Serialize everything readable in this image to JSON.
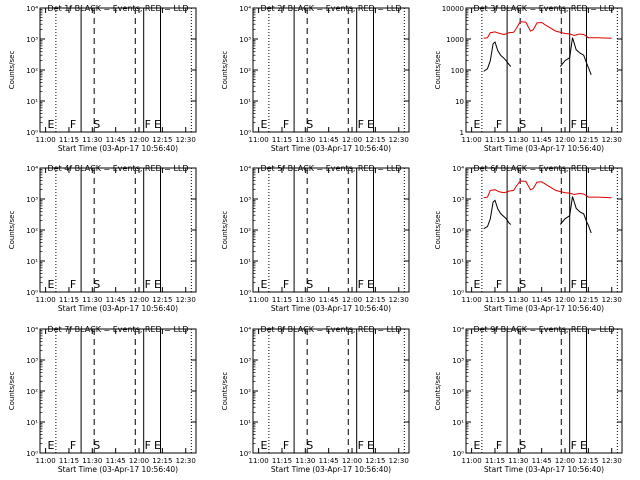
{
  "chart_data": [
    {
      "type": "line",
      "title": "Det 1f BLACK = Events, RED = LLD",
      "ylabel": "Counts/sec",
      "xlabel": "Start Time (03-Apr-17 10:56:40)",
      "x_ticks": [
        "11:00",
        "11:15",
        "11:30",
        "11:45",
        "12:00",
        "12:15",
        "12:30"
      ],
      "y_scale": "log",
      "y_ticks": [
        "10⁰",
        "10¹",
        "10²",
        "10³",
        "10⁴"
      ],
      "ylim": [
        1,
        10000
      ],
      "markers": [
        "E",
        "F",
        "S",
        "F",
        "E"
      ],
      "series": []
    },
    {
      "type": "line",
      "title": "Det 2f BLACK = Events, RED = LLD",
      "ylabel": "Counts/sec",
      "xlabel": "Start Time (03-Apr-17 10:56:40)",
      "x_ticks": [
        "11:00",
        "11:15",
        "11:30",
        "11:45",
        "12:00",
        "12:15",
        "12:30"
      ],
      "y_scale": "log",
      "y_ticks": [
        "10⁰",
        "10¹",
        "10²",
        "10³",
        "10⁴"
      ],
      "ylim": [
        1,
        10000
      ],
      "markers": [
        "E",
        "F",
        "S",
        "F",
        "E"
      ],
      "series": []
    },
    {
      "type": "line",
      "title": "Det 3f BLACK = Events, RED = LLD",
      "ylabel": "Counts/sec",
      "xlabel": "Start Time (03-Apr-17 10:56:40)",
      "x_ticks": [
        "11:00",
        "11:15",
        "11:30",
        "11:45",
        "12:00",
        "12:15",
        "12:30"
      ],
      "y_scale": "log",
      "y_ticks": [
        "1",
        "10",
        "100",
        "1000",
        "10000"
      ],
      "ylim": [
        1,
        10000
      ],
      "markers": [
        "E",
        "F",
        "S",
        "F",
        "E"
      ],
      "series": [
        {
          "color": "#dd0000",
          "points": [
            [
              11.13,
              1050
            ],
            [
              11.17,
              1100
            ],
            [
              11.2,
              1600
            ],
            [
              11.25,
              1700
            ],
            [
              11.3,
              1500
            ],
            [
              11.35,
              1400
            ],
            [
              11.4,
              1600
            ],
            [
              11.45,
              1650
            ],
            [
              11.48,
              2200
            ],
            [
              11.52,
              3600
            ],
            [
              11.58,
              3500
            ],
            [
              11.63,
              1800
            ],
            [
              11.66,
              2000
            ],
            [
              11.7,
              3300
            ],
            [
              11.75,
              3400
            ],
            [
              11.8,
              2700
            ],
            [
              11.9,
              1800
            ],
            [
              12.0,
              1500
            ],
            [
              12.05,
              1450
            ],
            [
              12.1,
              1300
            ],
            [
              12.15,
              1450
            ],
            [
              12.2,
              1400
            ],
            [
              12.25,
              1100
            ],
            [
              12.35,
              1100
            ],
            [
              12.5,
              1050
            ]
          ]
        },
        {
          "color": "#000000",
          "points": [
            [
              11.13,
              90
            ],
            [
              11.17,
              110
            ],
            [
              11.2,
              200
            ],
            [
              11.23,
              700
            ],
            [
              11.25,
              800
            ],
            [
              11.28,
              420
            ],
            [
              11.31,
              300
            ],
            [
              11.34,
              250
            ],
            [
              11.37,
              200
            ],
            [
              11.4,
              150
            ],
            [
              11.42,
              130
            ]
          ],
          "segment": "a"
        },
        {
          "color": "#000000",
          "points": [
            [
              11.95,
              130
            ],
            [
              12.0,
              200
            ],
            [
              12.05,
              250
            ],
            [
              12.08,
              1100
            ],
            [
              12.12,
              450
            ],
            [
              12.16,
              350
            ],
            [
              12.2,
              300
            ],
            [
              12.23,
              170
            ],
            [
              12.25,
              120
            ],
            [
              12.28,
              70
            ]
          ],
          "segment": "b"
        }
      ]
    },
    {
      "type": "line",
      "title": "Det 4f BLACK = Events, RED = LLD",
      "ylabel": "Counts/sec",
      "xlabel": "Start Time (03-Apr-17 10:56:40)",
      "x_ticks": [
        "11:00",
        "11:15",
        "11:30",
        "11:45",
        "12:00",
        "12:15",
        "12:30"
      ],
      "y_scale": "log",
      "y_ticks": [
        "10⁰",
        "10¹",
        "10²",
        "10³",
        "10⁴"
      ],
      "ylim": [
        1,
        10000
      ],
      "markers": [
        "E",
        "F",
        "S",
        "F",
        "E"
      ],
      "series": []
    },
    {
      "type": "line",
      "title": "Det 5f BLACK = Events, RED = LLD",
      "ylabel": "Counts/sec",
      "xlabel": "Start Time (03-Apr-17 10:56:40)",
      "x_ticks": [
        "11:00",
        "11:15",
        "11:30",
        "11:45",
        "12:00",
        "12:15",
        "12:30"
      ],
      "y_scale": "log",
      "y_ticks": [
        "10⁰",
        "10¹",
        "10²",
        "10³",
        "10⁴"
      ],
      "ylim": [
        1,
        10000
      ],
      "markers": [
        "E",
        "F",
        "S",
        "F",
        "E"
      ],
      "series": []
    },
    {
      "type": "line",
      "title": "Det 6f BLACK = Events, RED = LLD",
      "ylabel": "Counts/sec",
      "xlabel": "Start Time (03-Apr-17 10:56:40)",
      "x_ticks": [
        "11:00",
        "11:15",
        "11:30",
        "11:45",
        "12:00",
        "12:15",
        "12:30"
      ],
      "y_scale": "log",
      "y_ticks": [
        "10⁰",
        "10¹",
        "10²",
        "10³",
        "10⁴"
      ],
      "ylim": [
        1,
        10000
      ],
      "markers": [
        "E",
        "F",
        "S",
        "F",
        "E"
      ],
      "series": [
        {
          "color": "#dd0000",
          "points": [
            [
              11.13,
              1100
            ],
            [
              11.17,
              1150
            ],
            [
              11.2,
              1900
            ],
            [
              11.25,
              2000
            ],
            [
              11.3,
              1700
            ],
            [
              11.35,
              1600
            ],
            [
              11.4,
              1800
            ],
            [
              11.45,
              1900
            ],
            [
              11.48,
              2600
            ],
            [
              11.52,
              3800
            ],
            [
              11.58,
              3700
            ],
            [
              11.63,
              2000
            ],
            [
              11.66,
              2200
            ],
            [
              11.7,
              3500
            ],
            [
              11.75,
              3600
            ],
            [
              11.8,
              2900
            ],
            [
              11.9,
              1900
            ],
            [
              12.0,
              1600
            ],
            [
              12.05,
              1550
            ],
            [
              12.1,
              1400
            ],
            [
              12.15,
              1500
            ],
            [
              12.2,
              1450
            ],
            [
              12.25,
              1150
            ],
            [
              12.35,
              1150
            ],
            [
              12.5,
              1100
            ]
          ]
        },
        {
          "color": "#000000",
          "points": [
            [
              11.13,
              110
            ],
            [
              11.17,
              130
            ],
            [
              11.2,
              230
            ],
            [
              11.23,
              800
            ],
            [
              11.25,
              900
            ],
            [
              11.28,
              480
            ],
            [
              11.31,
              340
            ],
            [
              11.34,
              280
            ],
            [
              11.37,
              230
            ],
            [
              11.4,
              170
            ],
            [
              11.42,
              150
            ]
          ],
          "segment": "a"
        },
        {
          "color": "#000000",
          "points": [
            [
              11.95,
              150
            ],
            [
              12.0,
              230
            ],
            [
              12.05,
              290
            ],
            [
              12.08,
              1200
            ],
            [
              12.12,
              500
            ],
            [
              12.16,
              380
            ],
            [
              12.2,
              330
            ],
            [
              12.23,
              190
            ],
            [
              12.25,
              140
            ],
            [
              12.28,
              80
            ]
          ],
          "segment": "b"
        }
      ]
    },
    {
      "type": "line",
      "title": "Det 7f BLACK = Events, RED = LLD",
      "ylabel": "Counts/sec",
      "xlabel": "Start Time (03-Apr-17 10:56:40)",
      "x_ticks": [
        "11:00",
        "11:15",
        "11:30",
        "11:45",
        "12:00",
        "12:15",
        "12:30"
      ],
      "y_scale": "log",
      "y_ticks": [
        "10⁰",
        "10¹",
        "10²",
        "10³",
        "10⁴"
      ],
      "ylim": [
        1,
        10000
      ],
      "markers": [
        "E",
        "F",
        "S",
        "F",
        "E"
      ],
      "series": []
    },
    {
      "type": "line",
      "title": "Det 8f BLACK = Events, RED = LLD",
      "ylabel": "Counts/sec",
      "xlabel": "Start Time (03-Apr-17 10:56:40)",
      "x_ticks": [
        "11:00",
        "11:15",
        "11:30",
        "11:45",
        "12:00",
        "12:15",
        "12:30"
      ],
      "y_scale": "log",
      "y_ticks": [
        "10⁰",
        "10¹",
        "10²",
        "10³",
        "10⁴"
      ],
      "ylim": [
        1,
        10000
      ],
      "markers": [
        "E",
        "F",
        "S",
        "F",
        "E"
      ],
      "series": []
    },
    {
      "type": "line",
      "title": "Det 9f BLACK = Events, RED = LLD",
      "ylabel": "Counts/sec",
      "xlabel": "Start Time (03-Apr-17 10:56:40)",
      "x_ticks": [
        "11:00",
        "11:15",
        "11:30",
        "11:45",
        "12:00",
        "12:15",
        "12:30"
      ],
      "y_scale": "log",
      "y_ticks": [
        "10⁰",
        "10¹",
        "10²",
        "10³",
        "10⁴"
      ],
      "ylim": [
        1,
        10000
      ],
      "markers": [
        "E",
        "F",
        "S",
        "F",
        "E"
      ],
      "series": []
    }
  ]
}
